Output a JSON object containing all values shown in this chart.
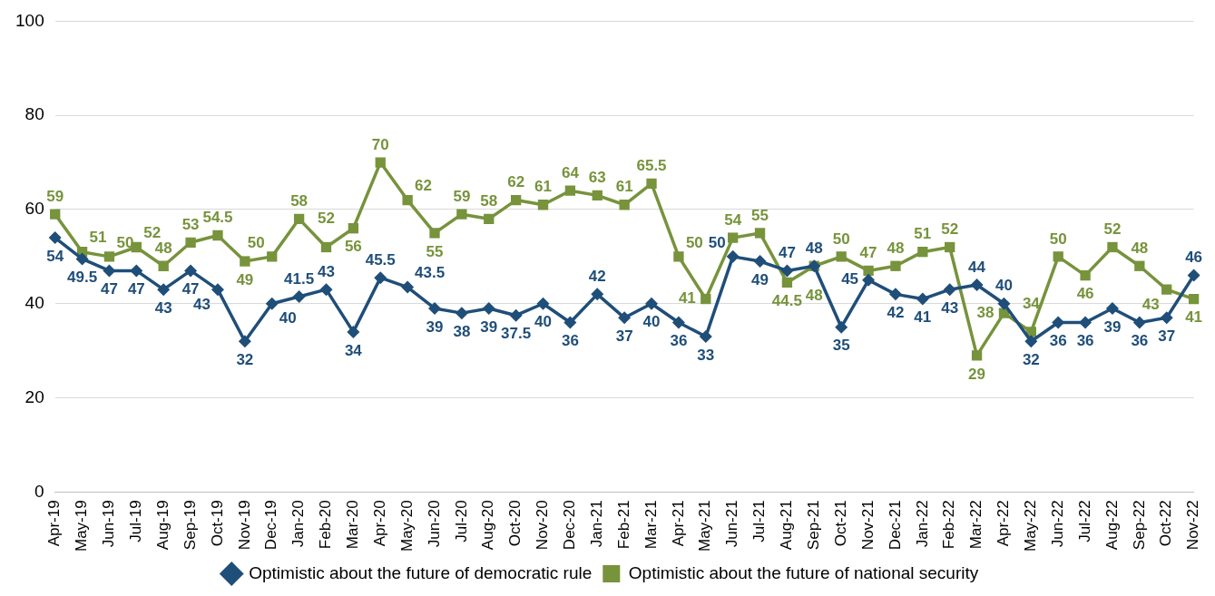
{
  "chart_data": {
    "type": "line",
    "categories": [
      "Apr-19",
      "May-19",
      "Jun-19",
      "Jul-19",
      "Aug-19",
      "Sep-19",
      "Oct-19",
      "Nov-19",
      "Dec-19",
      "Jan-20",
      "Feb-20",
      "Mar-20",
      "Apr-20",
      "May-20",
      "Jun-20",
      "Jul-20",
      "Aug-20",
      "Oct-20",
      "Nov-20",
      "Dec-20",
      "Jan-21",
      "Feb-21",
      "Mar-21",
      "Apr-21",
      "May-21",
      "Jun-21",
      "Jul-21",
      "Aug-21",
      "Sep-21",
      "Oct-21",
      "Nov-21",
      "Dec-21",
      "Jan-22",
      "Feb-22",
      "Mar-22",
      "Apr-22",
      "May-22",
      "Jun-22",
      "Jul-22",
      "Aug-22",
      "Sep-22",
      "Oct-22",
      "Nov-22"
    ],
    "series": [
      {
        "name": "Optimistic about the future of democratic rule",
        "color": "#1f4e79",
        "marker": "diamond",
        "values": [
          54,
          49.5,
          47,
          47,
          43,
          47,
          43,
          32,
          40,
          41.5,
          43,
          34,
          45.5,
          43.5,
          39,
          38,
          39,
          37.5,
          40,
          36,
          42,
          37,
          40,
          36,
          33,
          50,
          49,
          47,
          48,
          35,
          45,
          42,
          41,
          43,
          44,
          40,
          32,
          36,
          36,
          39,
          36,
          37,
          46
        ]
      },
      {
        "name": "Optimistic about the future of national security",
        "color": "#77933c",
        "marker": "square",
        "values": [
          59,
          51,
          50,
          52,
          48,
          53,
          54.5,
          49,
          50,
          58,
          52,
          56,
          70,
          62,
          55,
          59,
          58,
          62,
          61,
          64,
          63,
          61,
          65.5,
          50,
          41,
          54,
          55,
          44.5,
          48,
          50,
          47,
          48,
          51,
          52,
          29,
          38,
          34,
          50,
          46,
          52,
          48,
          43,
          41
        ]
      }
    ],
    "ylim": [
      0,
      100
    ],
    "yticks": [
      0,
      20,
      40,
      60,
      80,
      100
    ],
    "grid": "y",
    "legend": "bottom",
    "line_style": "solid",
    "data_labels": true
  }
}
